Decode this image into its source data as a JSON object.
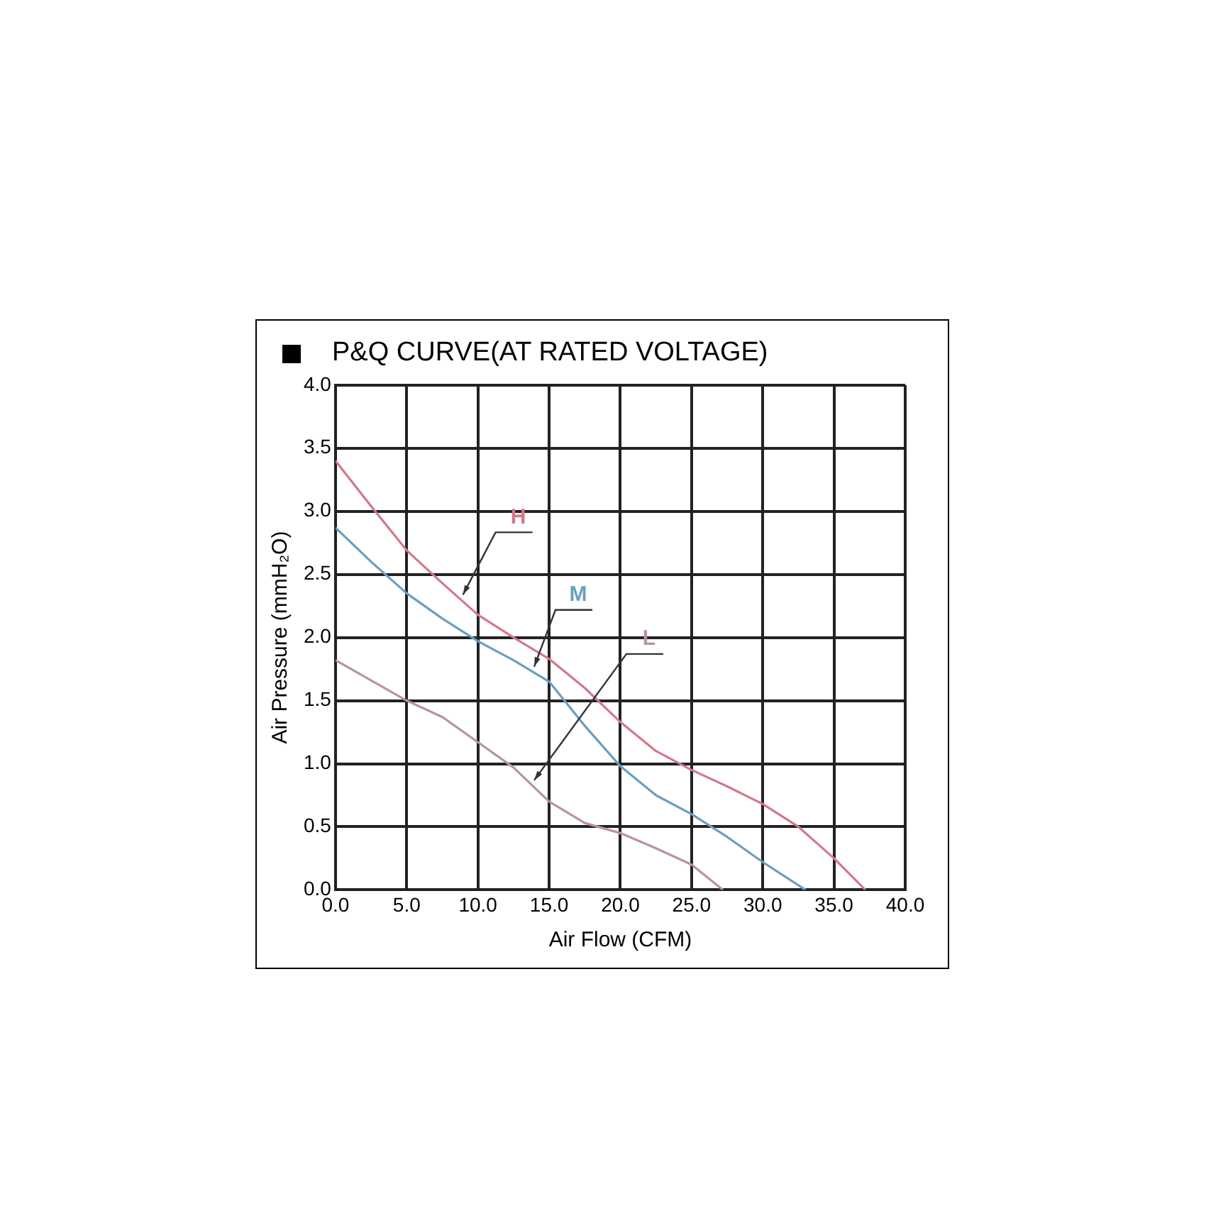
{
  "chart_data": {
    "type": "line",
    "title": "P&Q CURVE(AT RATED VOLTAGE)",
    "xlabel": "Air Flow (CFM)",
    "ylabel": "Air Pressure (mmH₂O)",
    "xlim": [
      0,
      40
    ],
    "ylim": [
      0,
      4
    ],
    "xticks": [
      {
        "value": 0,
        "label": "0.0"
      },
      {
        "value": 5,
        "label": "5.0"
      },
      {
        "value": 10,
        "label": "10.0"
      },
      {
        "value": 15,
        "label": "15.0"
      },
      {
        "value": 20,
        "label": "20.0"
      },
      {
        "value": 25,
        "label": "25.0"
      },
      {
        "value": 30,
        "label": "30.0"
      },
      {
        "value": 35,
        "label": "35.0"
      },
      {
        "value": 40,
        "label": "40.0"
      }
    ],
    "yticks": [
      {
        "value": 0,
        "label": "0.0"
      },
      {
        "value": 0.5,
        "label": "0.5"
      },
      {
        "value": 1,
        "label": "1.0"
      },
      {
        "value": 1.5,
        "label": "1.5"
      },
      {
        "value": 2,
        "label": "2.0"
      },
      {
        "value": 2.5,
        "label": "2.5"
      },
      {
        "value": 3,
        "label": "3.0"
      },
      {
        "value": 3.5,
        "label": "3.5"
      },
      {
        "value": 4,
        "label": "4.0"
      }
    ],
    "grid": true,
    "legend": false,
    "marker": "none",
    "line_style": "solid",
    "series": [
      {
        "name": "H",
        "color": "#d4788a",
        "x": [
          0,
          2.5,
          5,
          7.5,
          10,
          12.5,
          15,
          17.5,
          20,
          22.5,
          25,
          27.5,
          30,
          32.5,
          35,
          37.2
        ],
        "values": [
          3.4,
          3.04,
          2.69,
          2.43,
          2.18,
          2.0,
          1.83,
          1.6,
          1.33,
          1.1,
          0.95,
          0.82,
          0.68,
          0.5,
          0.25,
          0
        ]
      },
      {
        "name": "M",
        "color": "#6a9ec0",
        "x": [
          0,
          2.5,
          5,
          7.5,
          10,
          12.5,
          15,
          17.5,
          20,
          22.5,
          25,
          27.5,
          30,
          33
        ],
        "values": [
          2.87,
          2.6,
          2.35,
          2.15,
          1.97,
          1.82,
          1.65,
          1.3,
          0.98,
          0.75,
          0.6,
          0.42,
          0.22,
          0
        ]
      },
      {
        "name": "L",
        "color": "#b8949c",
        "x": [
          0,
          2.5,
          5,
          7.5,
          10,
          12.5,
          15,
          17.5,
          20,
          22.5,
          25,
          27.2
        ],
        "values": [
          1.82,
          1.66,
          1.5,
          1.37,
          1.17,
          0.97,
          0.7,
          0.53,
          0.45,
          0.33,
          0.2,
          0
        ]
      }
    ]
  }
}
